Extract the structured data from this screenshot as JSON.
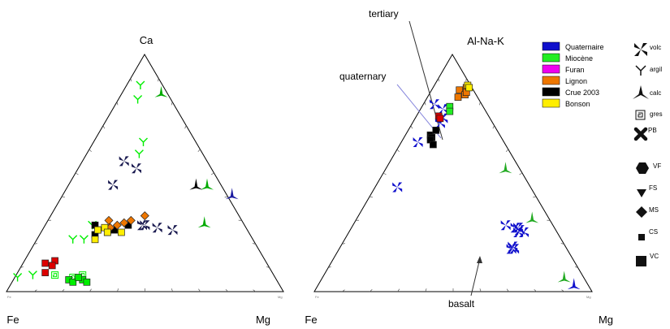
{
  "chart_data": [
    {
      "type": "scatter",
      "subtype": "ternary",
      "vertices": {
        "top": "Ca",
        "left": "Fe",
        "right": "Mg"
      },
      "tiny_corner_labels": {
        "left": "Fe",
        "right": "Mg"
      },
      "ticks_per_edge": 9,
      "grid": false,
      "series": [
        {
          "color": "#00ee00",
          "marker": "argil",
          "points": [
            [
              0.81,
              0.07
            ],
            [
              0.87,
              0.05
            ],
            [
              0.63,
              0.18
            ],
            [
              0.58,
              0.19
            ],
            [
              0.28,
              0.17
            ],
            [
              0.22,
              0.17
            ],
            [
              0.22,
              0.13
            ],
            [
              0.07,
              0.06
            ],
            [
              0.06,
              0.01
            ]
          ]
        },
        {
          "color": "#00ee00",
          "marker": "gres",
          "points": [
            [
              0.07,
              0.24
            ],
            [
              0.06,
              0.21
            ],
            [
              0.07,
              0.14
            ]
          ]
        },
        {
          "color": "#00aa00",
          "marker": "calc",
          "points": [
            [
              0.84,
              0.14
            ],
            [
              0.45,
              0.5
            ],
            [
              0.29,
              0.57
            ]
          ]
        },
        {
          "color": "#1a1aa0",
          "marker": "calc",
          "points": [
            [
              0.41,
              0.61
            ]
          ]
        },
        {
          "color": "#000000",
          "marker": "calc",
          "points": [
            [
              0.45,
              0.46
            ]
          ]
        },
        {
          "color": "#1a1a50",
          "marker": "volc",
          "points": [
            [
              0.55,
              0.15
            ],
            [
              0.52,
              0.21
            ],
            [
              0.45,
              0.16
            ],
            [
              0.28,
              0.35
            ],
            [
              0.28,
              0.36
            ],
            [
              0.27,
              0.41
            ],
            [
              0.26,
              0.47
            ]
          ]
        },
        {
          "color": "#000000",
          "marker": "square",
          "points": [
            [
              0.28,
              0.18
            ],
            [
              0.26,
              0.2
            ],
            [
              0.25,
              0.24
            ],
            [
              0.26,
              0.26
            ],
            [
              0.28,
              0.3
            ],
            [
              0.24,
              0.2
            ]
          ]
        },
        {
          "color": "#ee7700",
          "marker": "diamond",
          "points": [
            [
              0.3,
              0.22
            ],
            [
              0.28,
              0.26
            ],
            [
              0.29,
              0.28
            ],
            [
              0.3,
              0.3
            ],
            [
              0.32,
              0.34
            ],
            [
              0.27,
              0.24
            ]
          ]
        },
        {
          "color": "#ffee00",
          "marker": "square",
          "points": [
            [
              0.27,
              0.22
            ],
            [
              0.25,
              0.24
            ],
            [
              0.26,
              0.2
            ],
            [
              0.22,
              0.21
            ],
            [
              0.25,
              0.29
            ]
          ]
        },
        {
          "color": "#dd0000",
          "marker": "square",
          "points": [
            [
              0.12,
              0.08
            ],
            [
              0.13,
              0.11
            ],
            [
              0.11,
              0.11
            ],
            [
              0.08,
              0.1
            ]
          ]
        },
        {
          "color": "#00ee00",
          "marker": "square",
          "points": [
            [
              0.05,
              0.2
            ],
            [
              0.05,
              0.25
            ],
            [
              0.04,
              0.22
            ],
            [
              0.04,
              0.27
            ],
            [
              0.06,
              0.23
            ]
          ]
        }
      ]
    },
    {
      "type": "scatter",
      "subtype": "ternary",
      "vertices": {
        "top": "Al-Na-K",
        "left": "Fe",
        "right": "Mg"
      },
      "tiny_corner_labels": {
        "left": "Fe",
        "right": "Mg"
      },
      "ticks_per_edge": 9,
      "grid": false,
      "annotations": [
        {
          "text": "tertiary"
        },
        {
          "text": "quaternary"
        },
        {
          "text": "basalt"
        }
      ],
      "legend": {
        "position": "right",
        "entries": [
          {
            "label": "Quaternaire",
            "color": "#1010cc"
          },
          {
            "label": "Miocène",
            "color": "#22ee22"
          },
          {
            "label": "Furan",
            "color": "#ee00ee"
          },
          {
            "label": "Lignon",
            "color": "#ee7700"
          },
          {
            "label": "Crue 2003",
            "color": "#000000"
          },
          {
            "label": "Bonson",
            "color": "#ffee00"
          }
        ]
      },
      "symbol_key": [
        {
          "icon": "volc-icon",
          "label": "volc"
        },
        {
          "icon": "argil-icon",
          "label": "argil"
        },
        {
          "icon": "calc-icon",
          "label": "calc"
        },
        {
          "icon": "gres-icon",
          "label": "gres"
        },
        {
          "icon": "pb-icon",
          "label": "PB"
        },
        {
          "icon": "vf-icon",
          "label": "VF"
        },
        {
          "icon": "fs-icon",
          "label": "FS"
        },
        {
          "icon": "ms-icon",
          "label": "MS"
        },
        {
          "icon": "cs-icon",
          "label": "CS"
        },
        {
          "icon": "vc-icon",
          "label": "VC"
        }
      ],
      "series": [
        {
          "color": "#1010cc",
          "marker": "volc",
          "points": [
            [
              0.79,
              0.04
            ],
            [
              0.71,
              0.1
            ],
            [
              0.73,
              0.1
            ],
            [
              0.63,
              0.06
            ],
            [
              0.77,
              0.08
            ],
            [
              0.44,
              0.08
            ],
            [
              0.28,
              0.55
            ],
            [
              0.27,
              0.59
            ],
            [
              0.27,
              0.6
            ],
            [
              0.26,
              0.61
            ],
            [
              0.25,
              0.61
            ],
            [
              0.25,
              0.63
            ],
            [
              0.19,
              0.62
            ],
            [
              0.18,
              0.62
            ],
            [
              0.18,
              0.63
            ]
          ]
        },
        {
          "color": "#22aa22",
          "marker": "calc",
          "points": [
            [
              0.52,
              0.43
            ],
            [
              0.31,
              0.63
            ],
            [
              0.06,
              0.87
            ]
          ]
        },
        {
          "color": "#1010cc",
          "marker": "calc",
          "points": [
            [
              0.03,
              0.92
            ]
          ]
        },
        {
          "color": "#ee7700",
          "marker": "square",
          "points": [
            [
              0.85,
              0.1
            ],
            [
              0.82,
              0.11
            ],
            [
              0.83,
              0.13
            ],
            [
              0.86,
              0.12
            ],
            [
              0.84,
              0.13
            ]
          ]
        },
        {
          "color": "#ffee00",
          "marker": "square",
          "points": [
            [
              0.87,
              0.12
            ],
            [
              0.86,
              0.13
            ]
          ]
        },
        {
          "color": "#22ee22",
          "marker": "square",
          "points": [
            [
              0.78,
              0.1
            ],
            [
              0.76,
              0.11
            ]
          ]
        },
        {
          "color": "#dd0000",
          "marker": "square",
          "points": [
            [
              0.74,
              0.08
            ],
            [
              0.73,
              0.09
            ]
          ]
        },
        {
          "color": "#000000",
          "marker": "square",
          "points": [
            [
              0.66,
              0.09
            ],
            [
              0.65,
              0.1
            ],
            [
              0.64,
              0.1
            ],
            [
              0.62,
              0.12
            ],
            [
              0.68,
              0.1
            ]
          ]
        }
      ]
    }
  ]
}
